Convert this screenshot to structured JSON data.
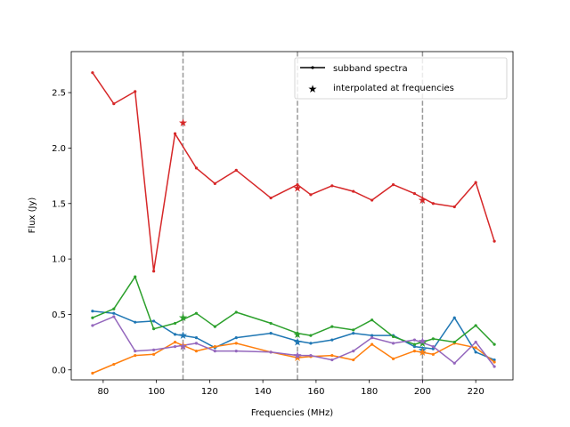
{
  "chart_data": {
    "type": "line",
    "xlabel": "Frequencies (MHz)",
    "ylabel": "Flux (Jy)",
    "xlim": [
      68,
      234
    ],
    "ylim": [
      -0.09,
      2.87
    ],
    "xticks": [
      80,
      100,
      120,
      140,
      160,
      180,
      200,
      220
    ],
    "xtick_labels": [
      "80",
      "100",
      "120",
      "140",
      "160",
      "180",
      "200",
      "220"
    ],
    "yticks": [
      0.0,
      0.5,
      1.0,
      1.5,
      2.0,
      2.5
    ],
    "ytick_labels": [
      "0.0",
      "0.5",
      "1.0",
      "1.5",
      "2.0",
      "2.5"
    ],
    "vlines": [
      110,
      153,
      200
    ],
    "legend": {
      "placement": "top-right",
      "entries": [
        {
          "label": "subband spectra",
          "marker": "line-dot"
        },
        {
          "label": "interpolated at frequencies",
          "marker": "star"
        }
      ]
    },
    "series": [
      {
        "color": "#1f77b4",
        "x": [
          76,
          84,
          92,
          99,
          107,
          115,
          122,
          130,
          143,
          153,
          158,
          166,
          174,
          181,
          189,
          197,
          204,
          212,
          220,
          227
        ],
        "y": [
          0.53,
          0.51,
          0.43,
          0.44,
          0.32,
          0.29,
          0.2,
          0.29,
          0.33,
          0.26,
          0.24,
          0.27,
          0.33,
          0.31,
          0.31,
          0.21,
          0.19,
          0.47,
          0.16,
          0.09
        ],
        "interpolated": [
          0.31,
          0.25,
          0.18
        ]
      },
      {
        "color": "#ff7f0e",
        "x": [
          76,
          84,
          92,
          99,
          107,
          115,
          122,
          130,
          143,
          153,
          158,
          166,
          174,
          181,
          189,
          197,
          204,
          212,
          220,
          227
        ],
        "y": [
          -0.03,
          0.05,
          0.13,
          0.14,
          0.25,
          0.17,
          0.21,
          0.24,
          0.16,
          0.11,
          0.12,
          0.13,
          0.09,
          0.23,
          0.1,
          0.17,
          0.14,
          0.24,
          0.2,
          0.07
        ],
        "interpolated": [
          0.22,
          0.11,
          0.16
        ]
      },
      {
        "color": "#2ca02c",
        "x": [
          76,
          84,
          92,
          99,
          107,
          115,
          122,
          130,
          143,
          153,
          158,
          166,
          174,
          181,
          189,
          197,
          204,
          212,
          220,
          227
        ],
        "y": [
          0.47,
          0.55,
          0.84,
          0.37,
          0.42,
          0.51,
          0.39,
          0.52,
          0.42,
          0.33,
          0.31,
          0.39,
          0.36,
          0.45,
          0.3,
          0.23,
          0.28,
          0.25,
          0.4,
          0.23
        ],
        "interpolated": [
          0.47,
          0.32,
          0.24
        ]
      },
      {
        "color": "#d62728",
        "x": [
          76,
          84,
          92,
          99,
          107,
          115,
          122,
          130,
          143,
          153,
          158,
          166,
          174,
          181,
          189,
          197,
          204,
          212,
          220,
          227
        ],
        "y": [
          2.68,
          2.4,
          2.51,
          0.89,
          2.13,
          1.82,
          1.68,
          1.8,
          1.55,
          1.67,
          1.58,
          1.66,
          1.61,
          1.53,
          1.67,
          1.59,
          1.5,
          1.47,
          1.69,
          1.16
        ],
        "interpolated": [
          2.23,
          1.64,
          1.53
        ]
      },
      {
        "color": "#9467bd",
        "x": [
          76,
          84,
          92,
          99,
          107,
          115,
          122,
          130,
          143,
          153,
          158,
          166,
          174,
          181,
          189,
          197,
          204,
          212,
          220,
          227
        ],
        "y": [
          0.4,
          0.48,
          0.17,
          0.18,
          0.21,
          0.24,
          0.17,
          0.17,
          0.16,
          0.13,
          0.13,
          0.09,
          0.17,
          0.29,
          0.24,
          0.27,
          0.21,
          0.06,
          0.25,
          0.03
        ],
        "interpolated": [
          0.21,
          0.13,
          0.26
        ]
      }
    ]
  }
}
